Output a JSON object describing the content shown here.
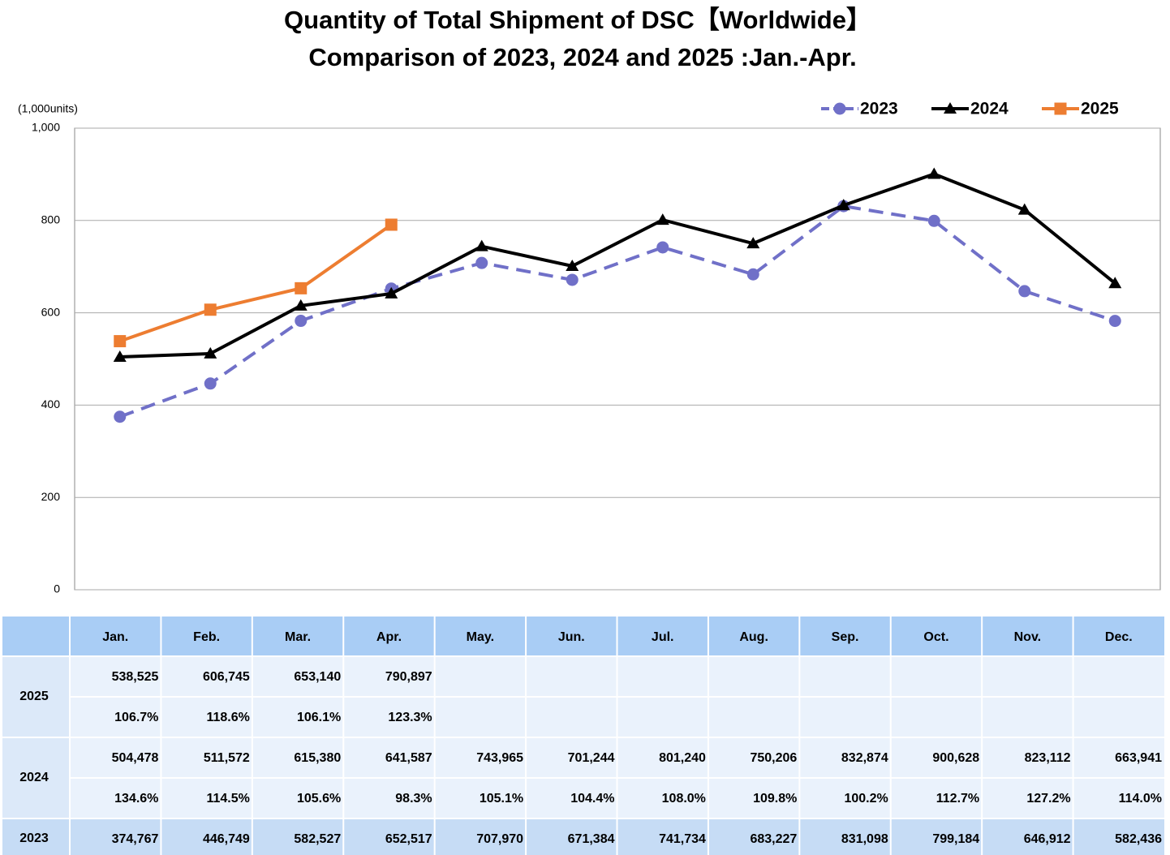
{
  "chart_data": {
    "type": "line",
    "title": "Quantity of Total Shipment of DSC【Worldwide】",
    "subtitle": "Comparison of 2023, 2024 and 2025 :Jan.-Apr.",
    "y_axis_label": "(1,000units)",
    "categories": [
      "Jan.",
      "Feb.",
      "Mar.",
      "Apr.",
      "May.",
      "Jun.",
      "Jul.",
      "Aug.",
      "Sep.",
      "Oct.",
      "Nov.",
      "Dec."
    ],
    "ylim": [
      0,
      1000
    ],
    "yticks": [
      0,
      200,
      400,
      600,
      800,
      {
        "value": 1000,
        "label": "1,000"
      }
    ],
    "grid": true,
    "legend": "top-right",
    "series": [
      {
        "name": "2023",
        "color": "#7070c8",
        "dashed": true,
        "marker": "circle",
        "values": [
          374.767,
          446.749,
          582.527,
          652.517,
          707.97,
          671.384,
          741.734,
          683.227,
          831.098,
          799.184,
          646.912,
          582.436
        ],
        "value_labels": [
          "374,767",
          "446,749",
          "582,527",
          "652,517",
          "707,970",
          "671,384",
          "741,734",
          "683,227",
          "831,098",
          "799,184",
          "646,912",
          "582,436"
        ]
      },
      {
        "name": "2024",
        "color": "#000000",
        "dashed": false,
        "marker": "triangle",
        "values": [
          504.478,
          511.572,
          615.38,
          641.587,
          743.965,
          701.244,
          801.24,
          750.206,
          832.874,
          900.628,
          823.112,
          663.941
        ],
        "value_labels": [
          "504,478",
          "511,572",
          "615,380",
          "641,587",
          "743,965",
          "701,244",
          "801,240",
          "750,206",
          "832,874",
          "900,628",
          "823,112",
          "663,941"
        ]
      },
      {
        "name": "2025",
        "color": "#ed7d31",
        "dashed": false,
        "marker": "square",
        "values": [
          538.525,
          606.745,
          653.14,
          790.897,
          null,
          null,
          null,
          null,
          null,
          null,
          null,
          null
        ],
        "value_labels": [
          "538,525",
          "606,745",
          "653,140",
          "790,897",
          null,
          null,
          null,
          null,
          null,
          null,
          null,
          null
        ]
      }
    ]
  },
  "table": {
    "ratio_rows": [
      [
        "106.7%",
        "118.6%",
        "106.1%",
        "123.3%"
      ],
      [
        "134.6%",
        "114.5%",
        "105.6%",
        "98.3%",
        "105.1%",
        "104.4%",
        "108.0%",
        "109.8%",
        "100.2%",
        "112.7%",
        "127.2%",
        "114.0%"
      ]
    ]
  }
}
